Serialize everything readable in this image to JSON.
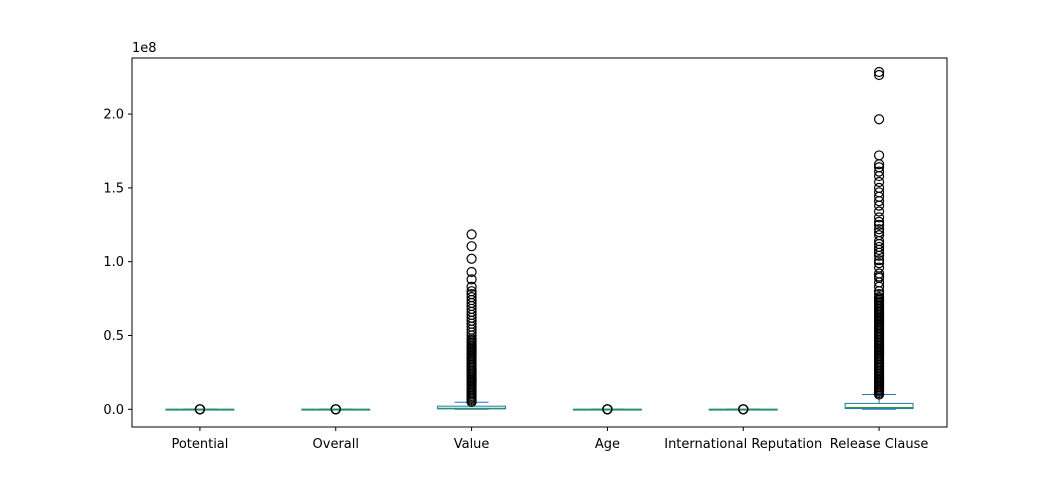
{
  "chart_data": {
    "type": "box",
    "title": "",
    "xlabel": "",
    "ylabel": "",
    "y_multiplier_label": "1e8",
    "ylim": [
      -12000000,
      238000000
    ],
    "yticks": [
      0,
      50000000,
      100000000,
      150000000,
      200000000
    ],
    "ytick_labels": [
      "0.0",
      "0.5",
      "1.0",
      "1.5",
      "2.0"
    ],
    "grid": false,
    "legend": "none",
    "colors": {
      "box": "#1f77b4",
      "median": "#2ca02c",
      "outlier_edge": "#000000",
      "axes": "#000000"
    },
    "categories": [
      "Potential",
      "Overall",
      "Value",
      "Age",
      "International Reputation",
      "Release Clause"
    ],
    "boxes": [
      {
        "name": "Potential",
        "whislo": 48,
        "q1": 67,
        "med": 71,
        "q3": 75,
        "whishi": 95,
        "fliers": [
          38,
          42,
          45,
          94
        ]
      },
      {
        "name": "Overall",
        "whislo": 48,
        "q1": 62,
        "med": 66,
        "q3": 71,
        "whishi": 85,
        "fliers": [
          46,
          47,
          87,
          94
        ]
      },
      {
        "name": "Value",
        "whislo": 0,
        "q1": 300000,
        "med": 700000,
        "q3": 2100000,
        "whishi": 4800000,
        "fliers": [
          5000000,
          6000000,
          7000000,
          8000000,
          9000000,
          10000000,
          11000000,
          12000000,
          13000000,
          14000000,
          15000000,
          16000000,
          17000000,
          18000000,
          19000000,
          20000000,
          21000000,
          22000000,
          23000000,
          24000000,
          25000000,
          26000000,
          27000000,
          28000000,
          29000000,
          30000000,
          31000000,
          32000000,
          33000000,
          34000000,
          35000000,
          36000000,
          37000000,
          38000000,
          39000000,
          40000000,
          41000000,
          42000000,
          43000000,
          44000000,
          45000000,
          46000000,
          47000000,
          48000000,
          50000000,
          52000000,
          54000000,
          56000000,
          58000000,
          60000000,
          62000000,
          64000000,
          66000000,
          68000000,
          70000000,
          72000000,
          74000000,
          76000000,
          78000000,
          80000000,
          83000000,
          88000000,
          93000000,
          102000000,
          110500000,
          118500000
        ]
      },
      {
        "name": "Age",
        "whislo": 16,
        "q1": 21,
        "med": 25,
        "q3": 28,
        "whishi": 39,
        "fliers": [
          40,
          41,
          44,
          45
        ]
      },
      {
        "name": "International Reputation",
        "whislo": 1,
        "q1": 1,
        "med": 1,
        "q3": 1,
        "whishi": 1,
        "fliers": [
          2,
          3,
          4,
          5
        ]
      },
      {
        "name": "Release Clause",
        "whislo": 0,
        "q1": 500000,
        "med": 1200000,
        "q3": 4000000,
        "whishi": 10000000,
        "fliers": [
          10000000,
          11000000,
          12000000,
          13000000,
          14000000,
          15000000,
          16000000,
          17000000,
          18000000,
          19000000,
          20000000,
          21000000,
          22000000,
          23000000,
          24000000,
          25000000,
          26000000,
          27000000,
          28000000,
          29000000,
          30000000,
          31000000,
          32000000,
          33000000,
          34000000,
          35000000,
          36000000,
          37000000,
          38000000,
          39000000,
          40000000,
          41000000,
          42000000,
          43000000,
          44000000,
          45000000,
          46000000,
          47000000,
          48000000,
          49000000,
          50000000,
          51000000,
          52000000,
          53000000,
          54000000,
          55000000,
          56000000,
          57000000,
          58000000,
          59000000,
          60000000,
          61000000,
          62000000,
          63000000,
          64000000,
          65000000,
          66000000,
          67000000,
          68000000,
          69000000,
          70000000,
          71000000,
          72000000,
          73000000,
          74000000,
          75000000,
          76000000,
          78000000,
          80000000,
          83000000,
          86000000,
          89000000,
          90000000,
          92000000,
          96000000,
          99000000,
          101000000,
          104000000,
          106000000,
          108000000,
          110000000,
          112000000,
          114000000,
          118000000,
          120000000,
          122000000,
          125000000,
          127000000,
          130000000,
          134000000,
          138000000,
          141000000,
          144000000,
          147000000,
          150000000,
          154000000,
          158000000,
          161000000,
          164000000,
          166000000,
          172000000,
          196500000,
          226500000,
          228500000
        ]
      }
    ]
  }
}
